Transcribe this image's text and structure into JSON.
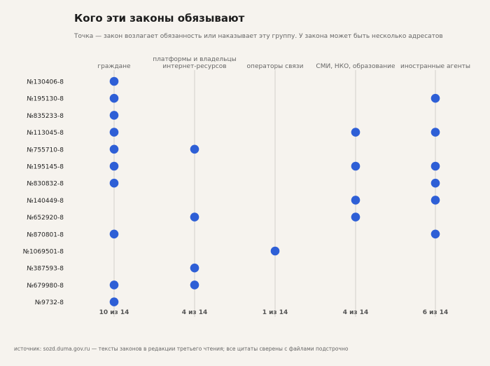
{
  "header": {
    "title": "Кого эти законы обязывают",
    "subtitle": "Точка — закон возлагает обязанность или наказывает эту группу. У закона может быть несколько адресатов"
  },
  "footer": {
    "source": "источник: sozd.duma.gov.ru — тексты законов в редакции третьего чтения; все цитаты сверены с файлами подстрочно"
  },
  "colors": {
    "dot": "#2e5fd6",
    "grid": "#d2cfca",
    "label": "#666666",
    "count": "#555555"
  },
  "chart_data": {
    "type": "scatter",
    "columns": [
      {
        "label": [
          "граждане"
        ],
        "count": "10 из 14"
      },
      {
        "label": [
          "платформы и владельцы",
          "интернет-ресурсов"
        ],
        "count": "4 из 14"
      },
      {
        "label": [
          "операторы связи"
        ],
        "count": "1 из 14"
      },
      {
        "label": [
          "СМИ, НКО, образование"
        ],
        "count": "4 из 14"
      },
      {
        "label": [
          "иностранные агенты"
        ],
        "count": "6 из 14"
      }
    ],
    "rows": [
      {
        "law": "№130406-8",
        "cols": [
          0
        ]
      },
      {
        "law": "№195130-8",
        "cols": [
          0,
          4
        ]
      },
      {
        "law": "№835233-8",
        "cols": [
          0
        ]
      },
      {
        "law": "№113045-8",
        "cols": [
          0,
          3,
          4
        ]
      },
      {
        "law": "№755710-8",
        "cols": [
          0,
          1
        ]
      },
      {
        "law": "№195145-8",
        "cols": [
          0,
          3,
          4
        ]
      },
      {
        "law": "№830832-8",
        "cols": [
          0,
          4
        ]
      },
      {
        "law": "№140449-8",
        "cols": [
          3,
          4
        ]
      },
      {
        "law": "№652920-8",
        "cols": [
          1,
          3
        ]
      },
      {
        "law": "№870801-8",
        "cols": [
          0,
          4
        ]
      },
      {
        "law": "№1069501-8",
        "cols": [
          2
        ]
      },
      {
        "law": "№387593-8",
        "cols": [
          1
        ]
      },
      {
        "law": "№679980-8",
        "cols": [
          0,
          1
        ]
      },
      {
        "law": "№9732-8",
        "cols": [
          0
        ]
      }
    ]
  }
}
